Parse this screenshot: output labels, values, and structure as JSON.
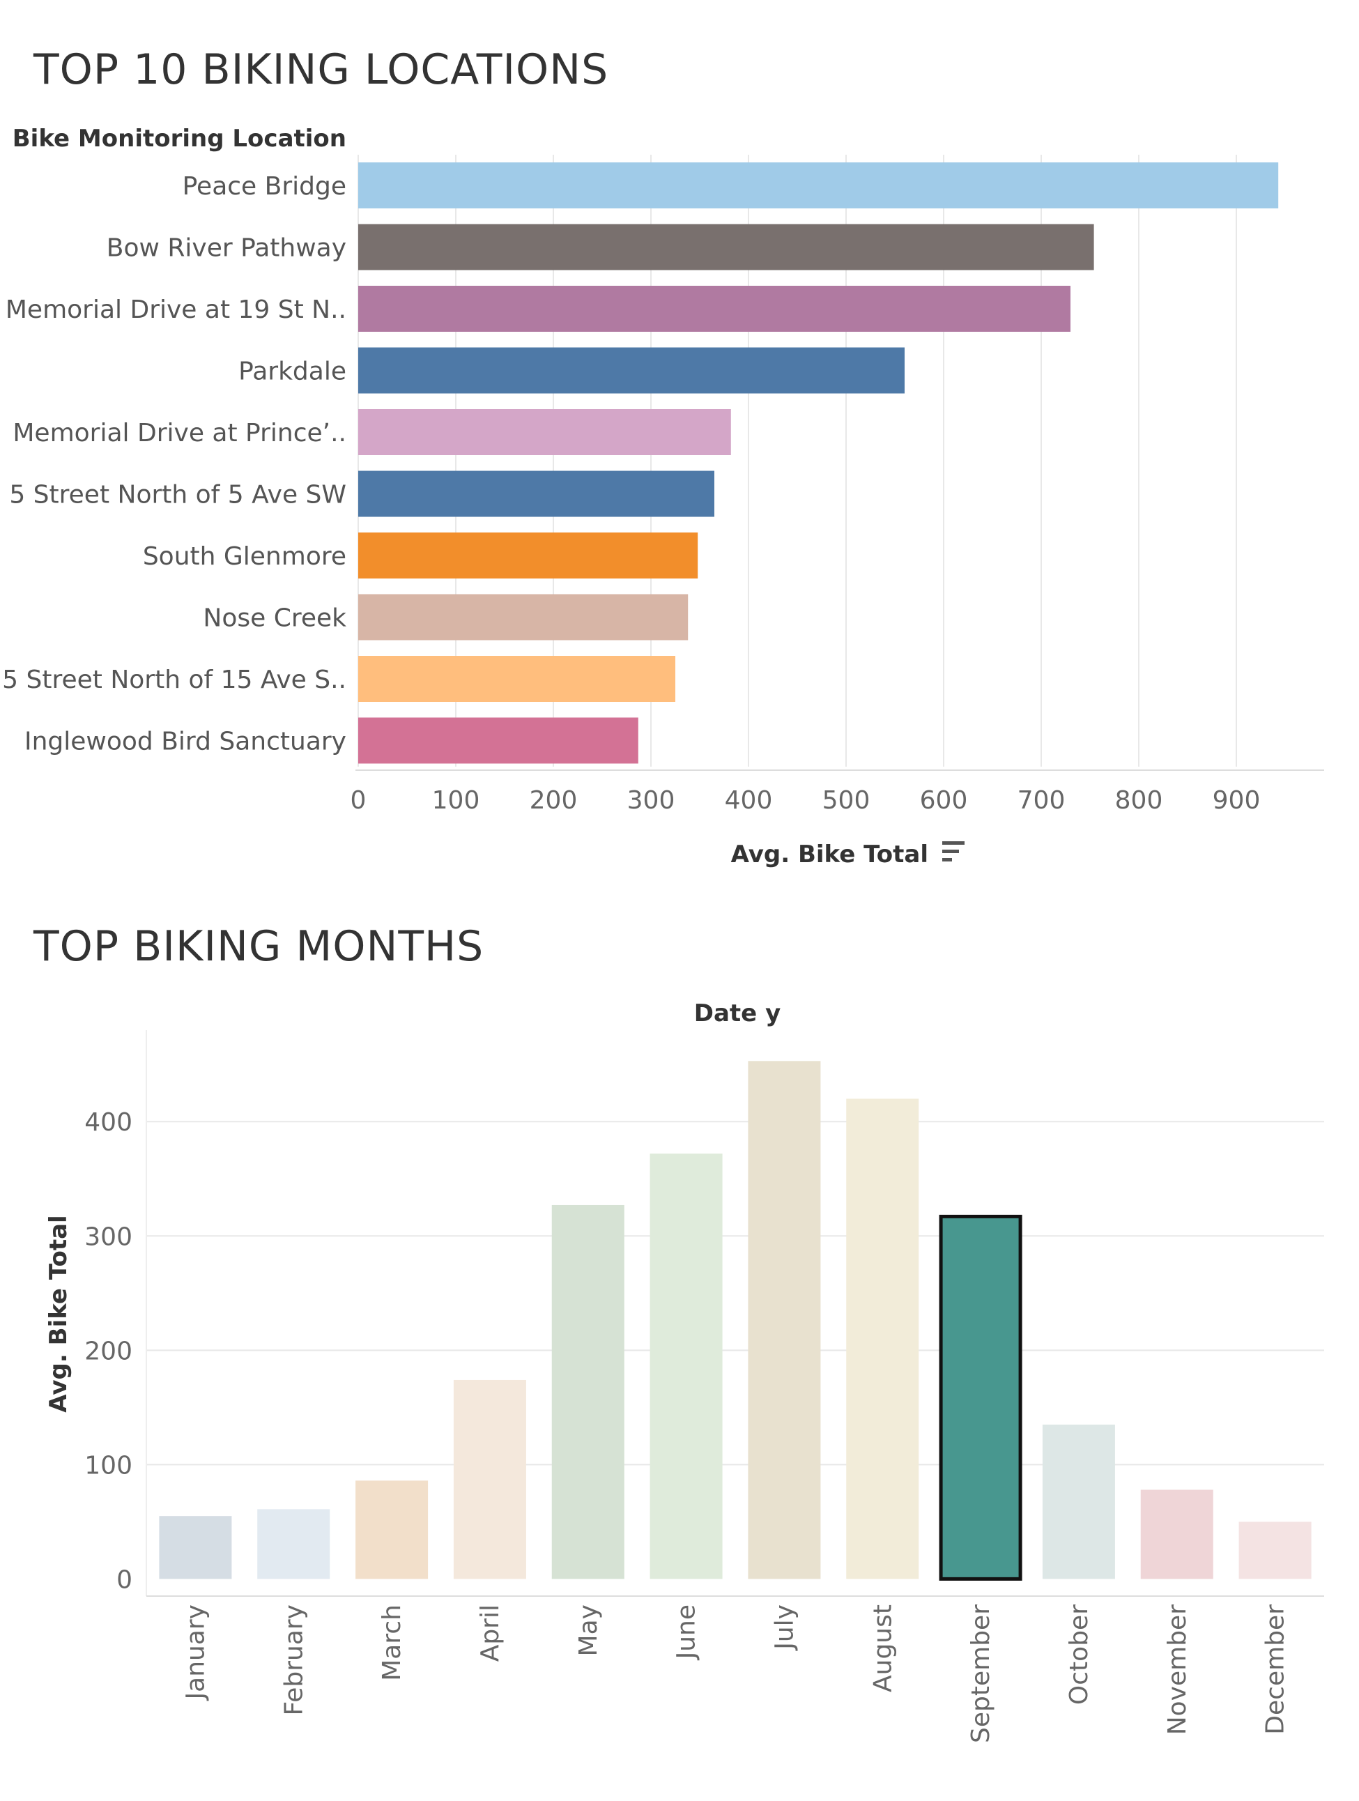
{
  "chart_data": [
    {
      "type": "bar",
      "orientation": "horizontal",
      "title": "TOP 10 BIKING LOCATIONS",
      "category_axis_title": "Bike Monitoring Location",
      "xlabel": "Avg. Bike Total",
      "xlim": [
        0,
        990
      ],
      "ticks": [
        0,
        100,
        200,
        300,
        400,
        500,
        600,
        700,
        800,
        900
      ],
      "grid": true,
      "sort_icon": "sort-descending-icon",
      "categories": [
        "Peace Bridge",
        "Bow River Pathway",
        "Memorial Drive at 19 St N..",
        "Parkdale",
        "Memorial Drive at Prince’..",
        "5 Street North of 5 Ave SW",
        "South Glenmore",
        "Nose Creek",
        "5 Street North of 15 Ave S..",
        "Inglewood Bird Sanctuary"
      ],
      "values": [
        943,
        754,
        730,
        560,
        382,
        365,
        348,
        338,
        325,
        287
      ],
      "colors": [
        "#a0cbe8",
        "#79706e",
        "#b07aa1",
        "#4e79a7",
        "#d4a6c8",
        "#4e79a7",
        "#f28e2b",
        "#d7b5a6",
        "#ffbe7d",
        "#d37295"
      ]
    },
    {
      "type": "bar",
      "orientation": "vertical",
      "title": "TOP BIKING MONTHS",
      "header": "Date y",
      "ylabel": "Avg. Bike Total",
      "ylim": [
        -15,
        480
      ],
      "ticks": [
        0,
        100,
        200,
        300,
        400
      ],
      "grid": true,
      "categories": [
        "January",
        "February",
        "March",
        "April",
        "May",
        "June",
        "July",
        "August",
        "September",
        "October",
        "November",
        "December"
      ],
      "values": [
        55,
        61,
        86,
        174,
        327,
        372,
        453,
        420,
        317,
        135,
        78,
        50
      ],
      "colors": [
        "#d5dde4",
        "#e2eaf1",
        "#f2dfca",
        "#f4e8dc",
        "#d6e2d4",
        "#dfebdb",
        "#e8e1cf",
        "#f2ecd9",
        "#48978f",
        "#dde7e6",
        "#efd5d7",
        "#f4e3e3"
      ],
      "highlighted": "September",
      "highlight_border": "#111111"
    }
  ]
}
